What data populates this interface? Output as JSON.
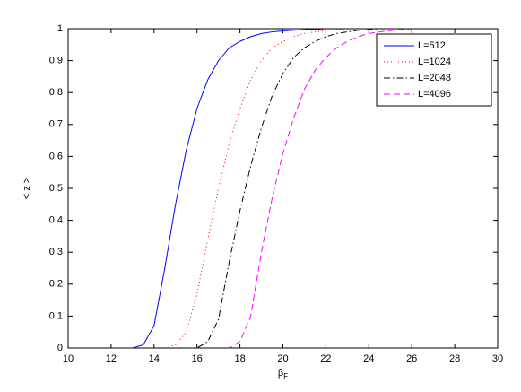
{
  "chart_data": {
    "type": "line",
    "xlabel": "β",
    "xlabel_subscript": "F",
    "ylabel": "< z >",
    "x": [
      10,
      10.5,
      11,
      11.5,
      12,
      12.5,
      13,
      13.5,
      14,
      14.5,
      15,
      15.5,
      16,
      16.5,
      17,
      17.5,
      18,
      18.5,
      19,
      19.5,
      20,
      20.5,
      21,
      21.5,
      22,
      22.5,
      23,
      23.5,
      24,
      24.5,
      25,
      25.5,
      26,
      26.5,
      27,
      27.5,
      28,
      28.5,
      29,
      29.5,
      30
    ],
    "series": [
      {
        "name": "L=512",
        "color": "#0000ff",
        "style": "solid",
        "values": [
          0,
          0,
          0,
          0,
          0,
          0,
          0,
          0.01,
          0.07,
          0.25,
          0.45,
          0.62,
          0.75,
          0.84,
          0.9,
          0.94,
          0.96,
          0.975,
          0.985,
          0.99,
          0.993,
          0.995,
          0.997,
          0.998,
          1,
          1,
          1,
          1,
          1,
          1,
          1,
          1,
          1,
          1,
          1,
          1,
          1,
          1,
          1,
          1,
          1
        ]
      },
      {
        "name": "L=1024",
        "color": "#ff0000",
        "style": "dotted",
        "values": [
          0,
          0,
          0,
          0,
          0,
          0,
          0,
          0,
          0,
          0,
          0.01,
          0.05,
          0.17,
          0.34,
          0.5,
          0.64,
          0.75,
          0.84,
          0.9,
          0.94,
          0.96,
          0.975,
          0.985,
          0.99,
          0.995,
          0.997,
          1,
          1,
          1,
          1,
          1,
          1,
          1,
          1,
          1,
          1,
          1,
          1,
          1,
          1,
          1
        ]
      },
      {
        "name": "L=2048",
        "color": "#000000",
        "style": "dashdot",
        "values": [
          0,
          0,
          0,
          0,
          0,
          0,
          0,
          0,
          0,
          0,
          0,
          0,
          0,
          0.02,
          0.09,
          0.27,
          0.43,
          0.57,
          0.69,
          0.79,
          0.86,
          0.91,
          0.94,
          0.96,
          0.975,
          0.985,
          0.99,
          0.995,
          0.997,
          1,
          1,
          1,
          1,
          1,
          1,
          1,
          1,
          1,
          1,
          1,
          1
        ]
      },
      {
        "name": "L=4096",
        "color": "#ff00ff",
        "style": "dashed",
        "values": [
          0,
          0,
          0,
          0,
          0,
          0,
          0,
          0,
          0,
          0,
          0,
          0,
          0,
          0,
          0,
          0,
          0.02,
          0.1,
          0.3,
          0.47,
          0.61,
          0.72,
          0.81,
          0.87,
          0.91,
          0.94,
          0.96,
          0.975,
          0.985,
          0.99,
          0.994,
          0.997,
          1,
          1,
          1,
          1,
          1,
          1,
          1,
          1,
          1
        ]
      }
    ],
    "xlim": [
      10,
      30
    ],
    "xticks": [
      10,
      12,
      14,
      16,
      18,
      20,
      22,
      24,
      26,
      28,
      30
    ],
    "ylim": [
      0,
      1
    ],
    "yticks": [
      0,
      0.1,
      0.2,
      0.3,
      0.4,
      0.5,
      0.6,
      0.7,
      0.8,
      0.9,
      1
    ],
    "grid": false,
    "legend": "northeast"
  }
}
